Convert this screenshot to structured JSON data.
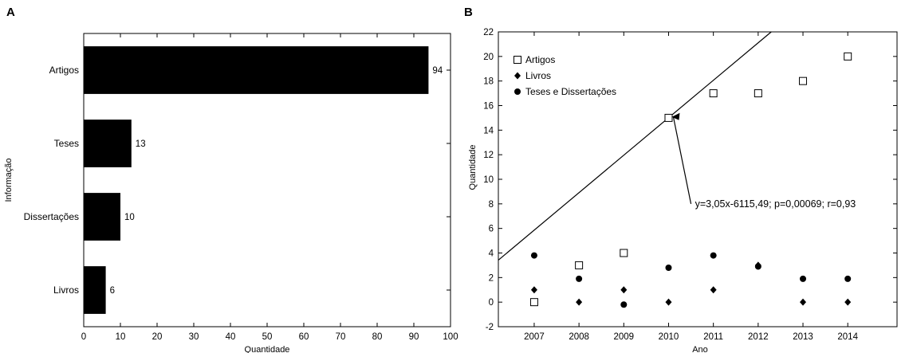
{
  "chart_data": [
    {
      "panel": "A",
      "type": "bar",
      "orientation": "horizontal",
      "categories": [
        "Artigos",
        "Teses",
        "Dissertações",
        "Livros"
      ],
      "values": [
        94,
        13,
        10,
        6
      ],
      "value_labels": [
        "94",
        "13",
        "10",
        "6"
      ],
      "xlabel": "Quantidade",
      "ylabel": "Informação",
      "xlim": [
        0,
        100
      ],
      "xticks": [
        0,
        10,
        20,
        30,
        40,
        50,
        60,
        70,
        80,
        90,
        100
      ],
      "bar_color": "#000000",
      "grid": false
    },
    {
      "panel": "B",
      "type": "scatter",
      "x": [
        2007,
        2008,
        2009,
        2010,
        2011,
        2012,
        2013,
        2014
      ],
      "series": [
        {
          "name": "Artigos",
          "marker": "open-square",
          "values": [
            0,
            3,
            4,
            15,
            17,
            17,
            18,
            20
          ]
        },
        {
          "name": "Livros",
          "marker": "filled-diamond",
          "values": [
            1,
            0,
            1,
            0,
            1,
            3,
            0,
            0
          ]
        },
        {
          "name": "Teses e Dissertações",
          "marker": "filled-circle",
          "values": [
            3.8,
            1.9,
            -0.2,
            2.8,
            3.8,
            2.9,
            1.9,
            1.9
          ]
        }
      ],
      "trendline": {
        "slope": 3.05,
        "intercept": -6115.49,
        "label": "y=3,05x-6115,49; p=0,00069; r=0,93"
      },
      "xlabel": "Ano",
      "ylabel": "Quantidade",
      "xlim": [
        2006.2,
        2015.1
      ],
      "ylim": [
        -2,
        22
      ],
      "xticks": [
        2007,
        2008,
        2009,
        2010,
        2011,
        2012,
        2013,
        2014
      ],
      "yticks": [
        -2,
        0,
        2,
        4,
        6,
        8,
        10,
        12,
        14,
        16,
        18,
        20,
        22
      ],
      "legend_position": "top-left",
      "grid": false
    }
  ]
}
